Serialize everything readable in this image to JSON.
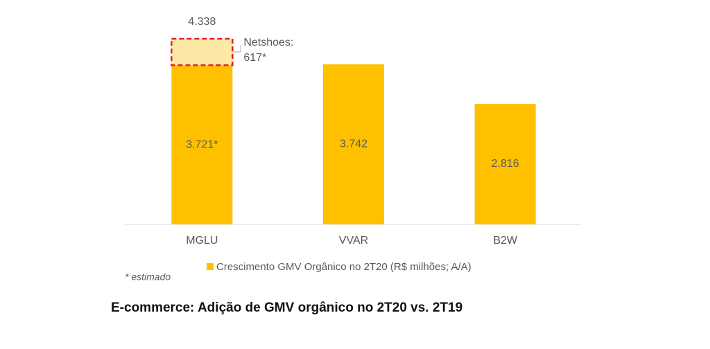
{
  "chart_data": {
    "type": "bar",
    "categories": [
      "MGLU",
      "VVAR",
      "B2W"
    ],
    "series": [
      {
        "name": "Crescimento GMV Orgânico no 2T20 (R$ milhões; A/A)",
        "color": "#ffc000",
        "values": [
          3721,
          3742,
          2816
        ],
        "value_labels": [
          "3.721*",
          "3.742",
          "2.816"
        ]
      },
      {
        "name": "Netshoes:",
        "color": "#fde9a6",
        "border_color": "#e02020",
        "values": [
          617,
          null,
          null
        ],
        "value_labels": [
          "617*",
          null,
          null
        ]
      }
    ],
    "totals": [
      4338,
      null,
      null
    ],
    "total_labels": [
      "4.338",
      null,
      null
    ],
    "footnote": "* estimado",
    "caption": "E-commerce: Adição de GMV orgânico no 2T20 vs. 2T19"
  }
}
